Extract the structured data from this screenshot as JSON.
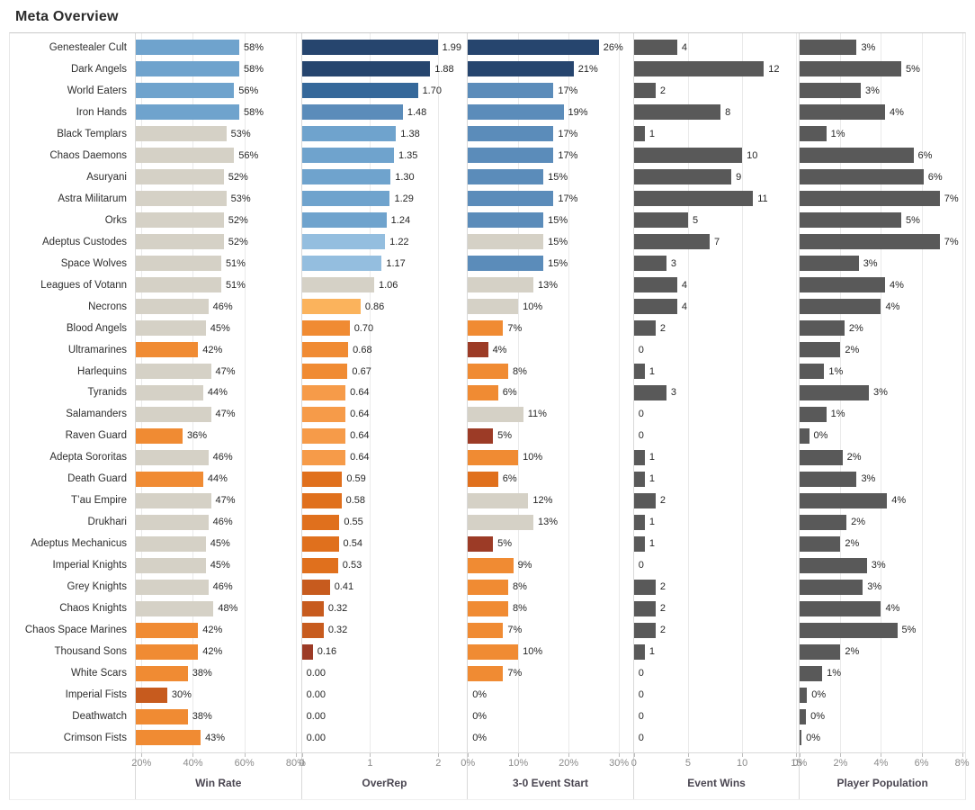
{
  "title": "Meta Overview",
  "palette": {
    "b1": "#26456e",
    "b2": "#35689a",
    "b3": "#5b8cba",
    "b4": "#6fa3cd",
    "b5": "#94bedf",
    "n": "#d5d1c6",
    "o1": "#fbb35c",
    "o2": "#f69b49",
    "o3": "#f08b33",
    "o4": "#e0701d",
    "o5": "#c75b1e",
    "o6": "#9c3b26",
    "g": "#595959"
  },
  "chart_data": {
    "type": "bar",
    "orientation": "horizontal",
    "title": "Meta Overview",
    "grid": true,
    "categories": [
      "Genestealer Cult",
      "Dark Angels",
      "World Eaters",
      "Iron Hands",
      "Black Templars",
      "Chaos Daemons",
      "Asuryani",
      "Astra Militarum",
      "Orks",
      "Adeptus Custodes",
      "Space Wolves",
      "Leagues of Votann",
      "Necrons",
      "Blood Angels",
      "Ultramarines",
      "Harlequins",
      "Tyranids",
      "Salamanders",
      "Raven Guard",
      "Adepta Sororitas",
      "Death Guard",
      "T’au Empire",
      "Drukhari",
      "Adeptus Mechanicus",
      "Imperial Knights",
      "Grey Knights",
      "Chaos Knights",
      "Chaos Space Marines",
      "Thousand Sons",
      "White Scars",
      "Imperial Fists",
      "Deathwatch",
      "Crimson Fists"
    ],
    "series": [
      {
        "name": "Win Rate",
        "values": [
          58,
          58,
          56,
          58,
          53,
          56,
          52,
          53,
          52,
          52,
          51,
          51,
          46,
          45,
          42,
          47,
          44,
          47,
          36,
          46,
          44,
          47,
          46,
          45,
          45,
          46,
          48,
          42,
          42,
          38,
          30,
          38,
          43
        ],
        "labels": [
          "58%",
          "58%",
          "56%",
          "58%",
          "53%",
          "56%",
          "52%",
          "53%",
          "52%",
          "52%",
          "51%",
          "51%",
          "46%",
          "45%",
          "42%",
          "47%",
          "44%",
          "47%",
          "36%",
          "46%",
          "44%",
          "47%",
          "46%",
          "45%",
          "45%",
          "46%",
          "48%",
          "42%",
          "42%",
          "38%",
          "30%",
          "38%",
          "43%"
        ],
        "colors": [
          "b4",
          "b4",
          "b4",
          "b4",
          "n",
          "n",
          "n",
          "n",
          "n",
          "n",
          "n",
          "n",
          "n",
          "n",
          "o3",
          "n",
          "n",
          "n",
          "o3",
          "n",
          "o3",
          "n",
          "n",
          "n",
          "n",
          "n",
          "n",
          "o3",
          "o3",
          "o3",
          "o5",
          "o3",
          "o3"
        ],
        "axis": {
          "min": 17.8,
          "max": 82,
          "ticks": [
            20,
            40,
            60,
            80
          ],
          "tick_labels": [
            "20%",
            "40%",
            "60%",
            "80%"
          ]
        }
      },
      {
        "name": "OverRep",
        "values": [
          1.99,
          1.88,
          1.7,
          1.48,
          1.38,
          1.35,
          1.3,
          1.29,
          1.24,
          1.22,
          1.17,
          1.06,
          0.86,
          0.7,
          0.68,
          0.67,
          0.64,
          0.64,
          0.64,
          0.64,
          0.59,
          0.58,
          0.55,
          0.54,
          0.53,
          0.41,
          0.32,
          0.32,
          0.16,
          0.0,
          0.0,
          0.0,
          0.0
        ],
        "labels": [
          "1.99",
          "1.88",
          "1.70",
          "1.48",
          "1.38",
          "1.35",
          "1.30",
          "1.29",
          "1.24",
          "1.22",
          "1.17",
          "1.06",
          "0.86",
          "0.70",
          "0.68",
          "0.67",
          "0.64",
          "0.64",
          "0.64",
          "0.64",
          "0.59",
          "0.58",
          "0.55",
          "0.54",
          "0.53",
          "0.41",
          "0.32",
          "0.32",
          "0.16",
          "0.00",
          "0.00",
          "0.00",
          "0.00"
        ],
        "colors": [
          "b1",
          "b1",
          "b2",
          "b3",
          "b4",
          "b4",
          "b4",
          "b4",
          "b4",
          "b5",
          "b5",
          "n",
          "o1",
          "o3",
          "o3",
          "o3",
          "o2",
          "o2",
          "o2",
          "o2",
          "o4",
          "o4",
          "o4",
          "o4",
          "o4",
          "o5",
          "o5",
          "o5",
          "o6",
          "",
          "",
          "",
          ""
        ],
        "axis": {
          "min": 0,
          "max": 2.42,
          "ticks": [
            0,
            1,
            2
          ],
          "tick_labels": [
            "0",
            "1",
            "2"
          ]
        }
      },
      {
        "name": "3-0 Event Start",
        "values": [
          26,
          21,
          17,
          19,
          17,
          17,
          15,
          17,
          15,
          15,
          15,
          13,
          10,
          7,
          4,
          8,
          6,
          11,
          5,
          10,
          6,
          12,
          13,
          5,
          9,
          8,
          8,
          7,
          10,
          7,
          0,
          0,
          0
        ],
        "labels": [
          "26%",
          "21%",
          "17%",
          "19%",
          "17%",
          "17%",
          "15%",
          "17%",
          "15%",
          "15%",
          "15%",
          "13%",
          "10%",
          "7%",
          "4%",
          "8%",
          "6%",
          "11%",
          "5%",
          "10%",
          "6%",
          "12%",
          "13%",
          "5%",
          "9%",
          "8%",
          "8%",
          "7%",
          "10%",
          "7%",
          "0%",
          "0%",
          "0%"
        ],
        "colors": [
          "b1",
          "b1",
          "b3",
          "b3",
          "b3",
          "b3",
          "b3",
          "b3",
          "b3",
          "n",
          "b3",
          "n",
          "n",
          "o3",
          "o6",
          "o3",
          "o3",
          "n",
          "o6",
          "o3",
          "o4",
          "n",
          "n",
          "o6",
          "o3",
          "o3",
          "o3",
          "o3",
          "o3",
          "o3",
          "",
          "",
          ""
        ],
        "axis": {
          "min": 0,
          "max": 32.8,
          "ticks": [
            0,
            10,
            20,
            30
          ],
          "tick_labels": [
            "0%",
            "10%",
            "20%",
            "30%"
          ]
        }
      },
      {
        "name": "Event Wins",
        "values": [
          4,
          12,
          2,
          8,
          1,
          10,
          9,
          11,
          5,
          7,
          3,
          4,
          4,
          2,
          0,
          1,
          3,
          0,
          0,
          1,
          1,
          2,
          1,
          1,
          0,
          2,
          2,
          2,
          1,
          0,
          0,
          0,
          0
        ],
        "labels": [
          "4",
          "12",
          "2",
          "8",
          "1",
          "10",
          "9",
          "11",
          "5",
          "7",
          "3",
          "4",
          "4",
          "2",
          "0",
          "1",
          "3",
          "0",
          "0",
          "1",
          "1",
          "2",
          "1",
          "1",
          "0",
          "2",
          "2",
          "2",
          "1",
          "0",
          "0",
          "0",
          "0"
        ],
        "colors": [
          "g",
          "g",
          "g",
          "g",
          "g",
          "g",
          "g",
          "g",
          "g",
          "g",
          "g",
          "g",
          "g",
          "g",
          "",
          "g",
          "g",
          "",
          "",
          "g",
          "g",
          "g",
          "g",
          "g",
          "",
          "g",
          "g",
          "g",
          "g",
          "",
          "",
          "",
          ""
        ],
        "axis": {
          "min": 0,
          "max": 15.25,
          "ticks": [
            0,
            5,
            10,
            15
          ],
          "tick_labels": [
            "0",
            "5",
            "10",
            "15"
          ]
        }
      },
      {
        "name": "Player Population",
        "values": [
          2.8,
          5.0,
          3.0,
          4.2,
          1.3,
          5.6,
          6.1,
          6.9,
          5.0,
          6.9,
          2.9,
          4.2,
          4.0,
          2.2,
          2.0,
          1.2,
          3.4,
          1.3,
          0.45,
          2.1,
          2.8,
          4.3,
          2.3,
          2.0,
          3.3,
          3.1,
          4.0,
          4.8,
          2.0,
          1.1,
          0.35,
          0.3,
          0.08
        ],
        "labels": [
          "3%",
          "5%",
          "3%",
          "4%",
          "1%",
          "6%",
          "6%",
          "7%",
          "5%",
          "7%",
          "3%",
          "4%",
          "4%",
          "2%",
          "2%",
          "1%",
          "3%",
          "1%",
          "0%",
          "2%",
          "3%",
          "4%",
          "2%",
          "2%",
          "3%",
          "3%",
          "4%",
          "5%",
          "2%",
          "1%",
          "0%",
          "0%",
          "0%"
        ],
        "colors": [
          "g",
          "g",
          "g",
          "g",
          "g",
          "g",
          "g",
          "g",
          "g",
          "g",
          "g",
          "g",
          "g",
          "g",
          "g",
          "g",
          "g",
          "g",
          "g",
          "g",
          "g",
          "g",
          "g",
          "g",
          "g",
          "g",
          "g",
          "g",
          "g",
          "g",
          "g",
          "g",
          "g"
        ],
        "axis": {
          "min": 0,
          "max": 8.15,
          "ticks": [
            0,
            2,
            4,
            6,
            8
          ],
          "tick_labels": [
            "0%",
            "2%",
            "4%",
            "6%",
            "8%"
          ]
        }
      }
    ]
  }
}
